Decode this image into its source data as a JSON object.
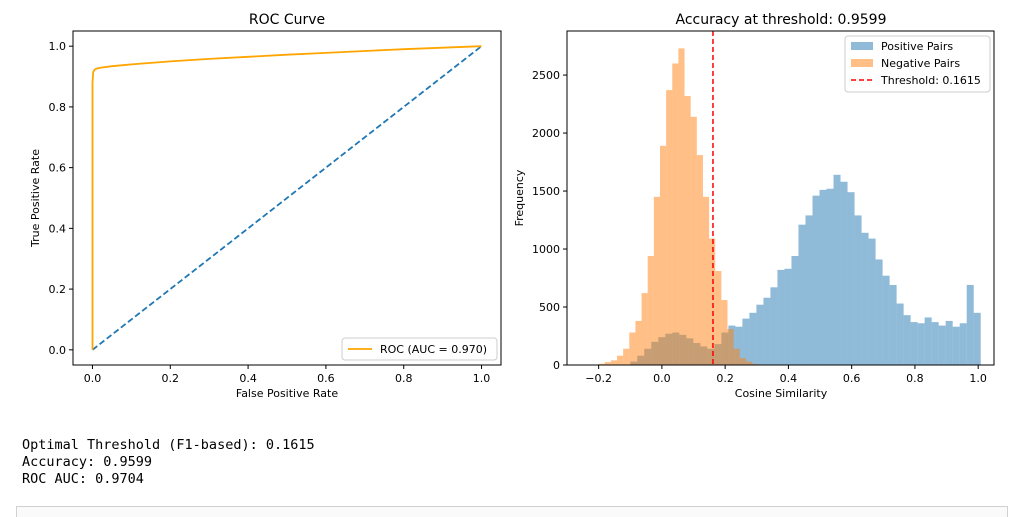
{
  "chart_data": [
    {
      "type": "line",
      "title": "ROC Curve",
      "xlabel": "False Positive Rate",
      "ylabel": "True Positive Rate",
      "xlim": [
        -0.05,
        1.05
      ],
      "ylim": [
        -0.05,
        1.05
      ],
      "xticks": [
        "0.0",
        "0.2",
        "0.4",
        "0.6",
        "0.8",
        "1.0"
      ],
      "yticks": [
        "0.0",
        "0.2",
        "0.4",
        "0.6",
        "0.8",
        "1.0"
      ],
      "legend_position": "lower-right",
      "grid": false,
      "series": [
        {
          "name": "ROC (AUC = 0.970)",
          "color": "#ffa500",
          "style": "solid",
          "x": [
            0.0,
            0.0,
            0.002,
            0.005,
            0.01,
            0.02,
            0.05,
            0.1,
            0.2,
            0.3,
            0.4,
            0.5,
            0.6,
            0.7,
            0.8,
            0.9,
            1.0
          ],
          "y": [
            0.0,
            0.88,
            0.915,
            0.922,
            0.926,
            0.929,
            0.934,
            0.94,
            0.95,
            0.958,
            0.965,
            0.972,
            0.978,
            0.984,
            0.99,
            0.995,
            1.0
          ]
        },
        {
          "name": "",
          "color": "#1f77b4",
          "style": "dashed",
          "x": [
            0.0,
            1.0
          ],
          "y": [
            0.0,
            1.0
          ]
        }
      ]
    },
    {
      "type": "bar",
      "title": "Accuracy at threshold: 0.9599",
      "xlabel": "Cosine Similarity",
      "ylabel": "Frequency",
      "xlim": [
        -0.3,
        1.05
      ],
      "ylim": [
        0,
        2880
      ],
      "xticks": [
        "−0.2",
        "0.0",
        "0.2",
        "0.4",
        "0.6",
        "0.8",
        "1.0"
      ],
      "yticks": [
        "0",
        "500",
        "1000",
        "1500",
        "2000",
        "2500"
      ],
      "legend_position": "top-right",
      "grid": false,
      "series": [
        {
          "name": "Positive Pairs",
          "color": "#1f77b4",
          "alpha": 0.5,
          "bin_start": -0.1,
          "bin_width": 0.02216,
          "values": [
            30,
            80,
            140,
            200,
            240,
            270,
            280,
            260,
            230,
            190,
            160,
            140,
            180,
            280,
            340,
            330,
            400,
            450,
            520,
            580,
            670,
            820,
            830,
            940,
            1210,
            1290,
            1460,
            1510,
            1520,
            1640,
            1580,
            1490,
            1290,
            1140,
            1090,
            910,
            770,
            690,
            530,
            430,
            370,
            360,
            410,
            370,
            340,
            380,
            330,
            360,
            690,
            450
          ]
        },
        {
          "name": "Negative Pairs",
          "color": "#ff7f0e",
          "alpha": 0.5,
          "bin_start": -0.2,
          "bin_width": 0.0194,
          "values": [
            10,
            25,
            40,
            80,
            140,
            280,
            380,
            620,
            940,
            1450,
            1890,
            2370,
            2600,
            2730,
            2320,
            2140,
            1810,
            1450,
            1090,
            810,
            560,
            310,
            140,
            60,
            30,
            10
          ]
        }
      ],
      "annotations": [
        {
          "name": "Threshold: 0.1615",
          "type": "vline",
          "x": 0.1615,
          "color": "#ff0000",
          "style": "dashed"
        }
      ]
    }
  ],
  "output": {
    "line1": "Optimal Threshold (F1-based): 0.1615",
    "line2": "Accuracy: 0.9599",
    "line3": "ROC AUC: 0.9704"
  }
}
